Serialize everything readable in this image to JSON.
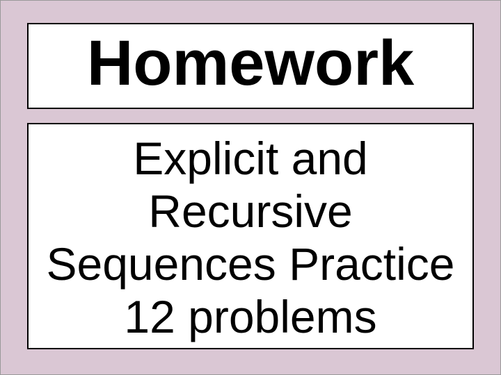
{
  "slide": {
    "background_color": "#dac7d4",
    "title_box": {
      "background_color": "#ffffff",
      "border_color": "#000000",
      "border_width": 2,
      "text": "Homework",
      "font_size": 92,
      "font_weight": "bold",
      "text_color": "#000000"
    },
    "body_box": {
      "background_color": "#ffffff",
      "border_color": "#000000",
      "border_width": 2,
      "line1": "Explicit and",
      "line2": "Recursive",
      "line3": "Sequences Practice",
      "line4": "12 problems",
      "font_size": 66,
      "font_weight": "normal",
      "text_color": "#000000"
    }
  }
}
